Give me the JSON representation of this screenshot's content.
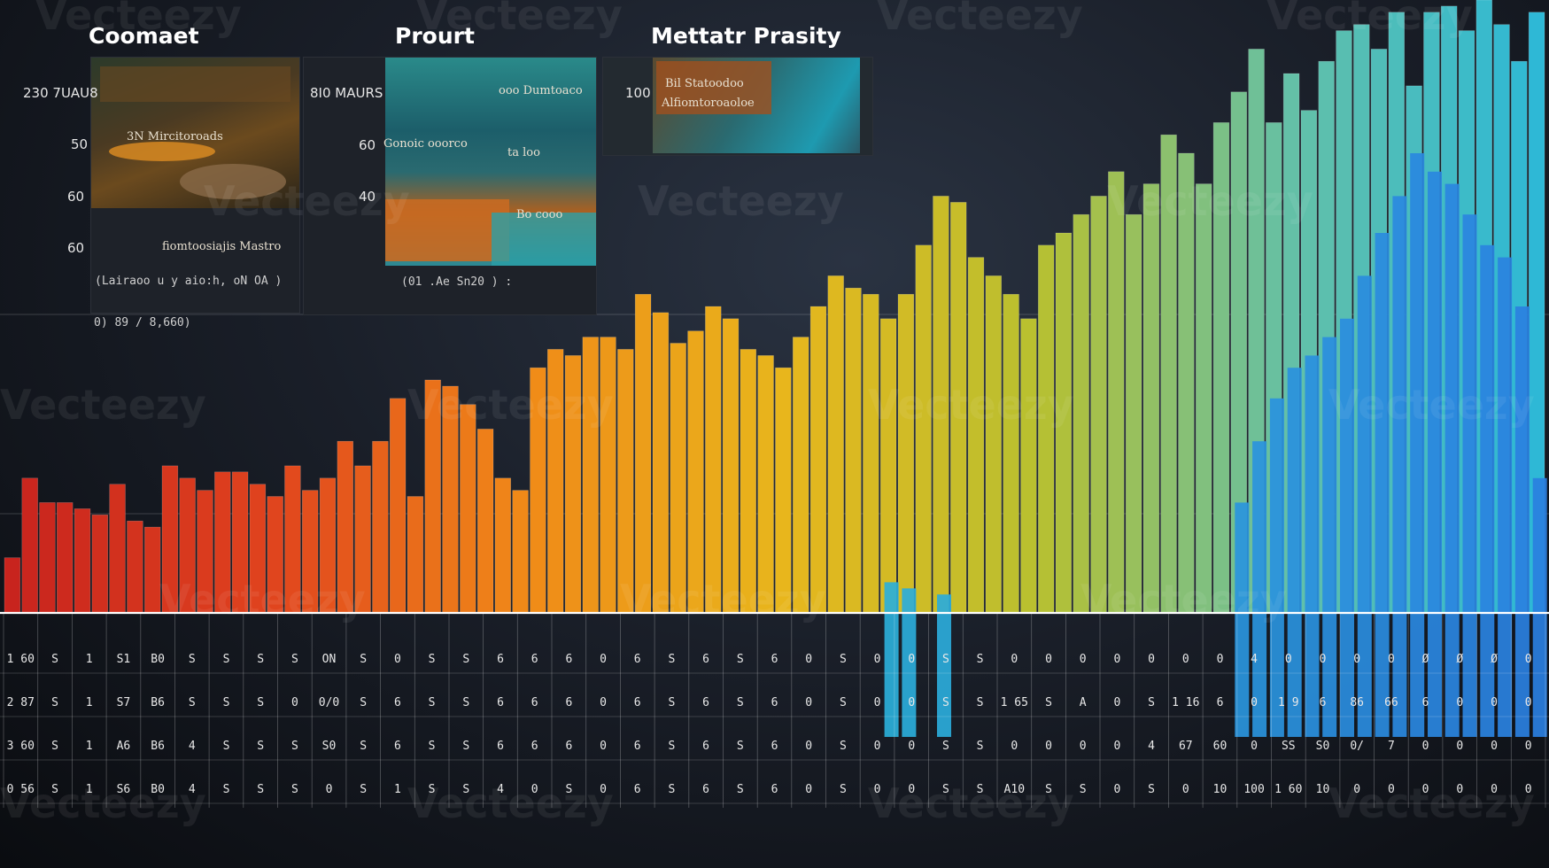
{
  "panels": [
    {
      "title": "Coomaet",
      "ylabels": [
        "230 7UAU8",
        "50",
        "60",
        "60"
      ],
      "thumb_labels": [
        "3N Mircitoroads",
        "fiomtoosiajis Mastro"
      ],
      "caption": "(Lairaoo u y aio:h, oN OA )",
      "caption2": "0) 89 / 8,660)"
    },
    {
      "title": "Prourt",
      "ylabels": [
        "8I0 MAURS",
        "60",
        "40"
      ],
      "thumb_labels": [
        "ooo Dumtoaco",
        "Gonoic ooorco",
        "ta loo",
        "Bo cooo"
      ],
      "caption": "(01 .Ae Sn20 ) :",
      "caption2": ""
    },
    {
      "title": "Mettatr Prasity",
      "ylabels": [
        "100"
      ],
      "thumb_labels": [
        "Bil Statoodoo",
        "Alfiomtoroaoloe"
      ],
      "caption": "",
      "caption2": ""
    }
  ],
  "table_rows": [
    [
      "1 60",
      "S",
      "1",
      "S1",
      "B0",
      "S",
      "S",
      "S",
      "S",
      "ON",
      "S",
      "0",
      "S",
      "S",
      "6",
      "6",
      "6",
      "0",
      "6",
      "S",
      "6",
      "S",
      "6",
      "0",
      "S",
      "0",
      "0",
      "S",
      "S",
      "0",
      "0",
      "0",
      "0",
      "0",
      "0",
      "0",
      "4",
      "0",
      "0",
      "0",
      "0",
      "Ø",
      "Ø",
      "Ø",
      "0"
    ],
    [
      "2 87",
      "S",
      "1",
      "S7",
      "B6",
      "S",
      "S",
      "S",
      "0",
      "0/0",
      "S",
      "6",
      "S",
      "S",
      "6",
      "6",
      "6",
      "0",
      "6",
      "S",
      "6",
      "S",
      "6",
      "0",
      "S",
      "0",
      "0",
      "S",
      "S",
      "1 65",
      "S",
      "A",
      "0",
      "S",
      "1 16",
      "6",
      "0",
      "1 9",
      "6",
      "86",
      "66",
      "6",
      "0",
      "0",
      "0"
    ],
    [
      "3 60",
      "S",
      "1",
      "A6",
      "B6",
      "4",
      "S",
      "S",
      "S",
      "S0",
      "S",
      "6",
      "S",
      "S",
      "6",
      "6",
      "6",
      "0",
      "6",
      "S",
      "6",
      "S",
      "6",
      "0",
      "S",
      "0",
      "0",
      "S",
      "S",
      "0",
      "0",
      "0",
      "0",
      "4",
      "67",
      "60",
      "0",
      "SS",
      "S0",
      "0/",
      "7",
      "0",
      "0",
      "0",
      "0"
    ],
    [
      "0 56",
      "S",
      "1",
      "S6",
      "B0",
      "4",
      "S",
      "S",
      "S",
      "0",
      "S",
      "1",
      "S",
      "S",
      "4",
      "0",
      "S",
      "0",
      "6",
      "S",
      "6",
      "S",
      "6",
      "0",
      "S",
      "0",
      "0",
      "S",
      "S",
      "A10",
      "S",
      "S",
      "0",
      "S",
      "0",
      "10",
      "100",
      "1 60",
      "10",
      "0",
      "0",
      "0",
      "0",
      "0",
      "0"
    ]
  ],
  "watermark": "Vecteezy",
  "chart_data": {
    "type": "bar",
    "title": "",
    "xlabel": "",
    "ylabel": "",
    "ylim": [
      0,
      100
    ],
    "grid": true,
    "color_scale": [
      "#c8241e",
      "#e0431e",
      "#f08a18",
      "#e8b61c",
      "#b8c030",
      "#63c0a8",
      "#2bb8d8",
      "#2a7fe0"
    ],
    "series": [
      {
        "values": [
          9,
          22,
          18,
          18,
          17,
          16,
          21,
          15,
          14,
          24,
          22,
          20,
          23,
          23,
          21,
          19,
          24,
          20,
          22,
          28,
          24,
          28,
          35,
          19,
          38,
          37,
          34,
          30,
          22,
          20,
          40,
          43,
          42,
          45,
          45,
          43,
          52,
          49,
          44,
          46,
          50,
          48,
          43,
          42,
          40,
          45,
          50,
          55,
          53,
          52,
          48,
          52,
          60,
          68,
          67,
          58,
          55,
          52,
          48,
          60,
          62,
          65,
          68,
          72,
          65,
          70,
          78,
          75,
          70,
          80,
          85,
          92,
          80,
          88,
          82,
          90,
          95,
          96,
          92,
          98,
          86,
          98,
          99,
          95,
          100,
          96,
          90,
          98
        ]
      },
      {
        "values": [
          0,
          0,
          0,
          0,
          0,
          0,
          0,
          0,
          0,
          0,
          0,
          0,
          0,
          0,
          0,
          0,
          0,
          0,
          0,
          0,
          0,
          0,
          0,
          0,
          0,
          0,
          0,
          0,
          0,
          0,
          0,
          0,
          0,
          0,
          0,
          0,
          0,
          0,
          0,
          0,
          0,
          0,
          0,
          0,
          0,
          0,
          0,
          0,
          0,
          0,
          5,
          4,
          0,
          3,
          0,
          0,
          0,
          0,
          0,
          0,
          0,
          0,
          0,
          0,
          0,
          0,
          0,
          0,
          0,
          0,
          18,
          28,
          35,
          40,
          42,
          45,
          48,
          55,
          62,
          68,
          75,
          72,
          70,
          65,
          60,
          58,
          50,
          22
        ]
      }
    ]
  }
}
